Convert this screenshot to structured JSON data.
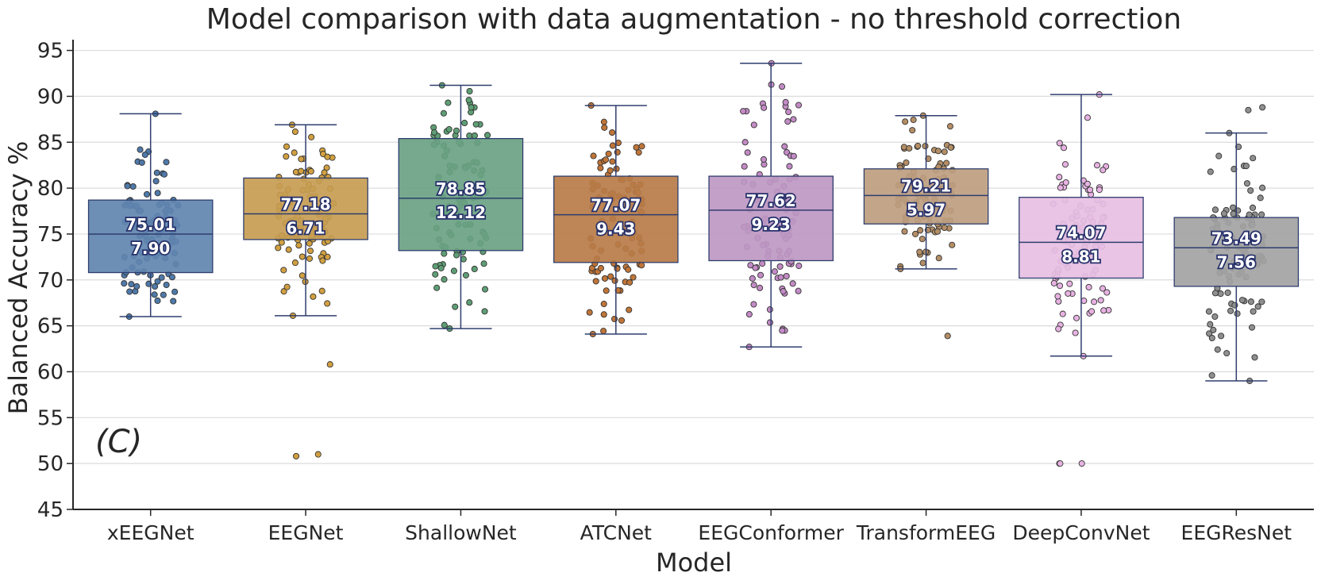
{
  "chart_data": {
    "type": "box",
    "title": "Model comparison with data augmentation - no threshold correction",
    "xlabel": "Model",
    "ylabel": "Balanced Accuracy %",
    "panel_label": "(C)",
    "ylim": [
      45,
      96
    ],
    "yticks": [
      45,
      50,
      55,
      60,
      65,
      70,
      75,
      80,
      85,
      90,
      95
    ],
    "grid": "horizontal",
    "categories": [
      "xEEGNet",
      "EEGNet",
      "ShallowNet",
      "ATCNet",
      "EEGConformer",
      "TransformEEG",
      "DeepConvNet",
      "EEGResNet"
    ],
    "colors": [
      "#6185b0",
      "#c79d52",
      "#6aa283",
      "#b97c48",
      "#be98c3",
      "#be9e80",
      "#e7bfe3",
      "#a3a3a3"
    ],
    "point_colors": [
      "#4f79a9",
      "#d2a040",
      "#5e9e75",
      "#c07538",
      "#c38bc6",
      "#b48e66",
      "#e7b2e2",
      "#8f8f8f"
    ],
    "boxes": [
      {
        "q1": 70.8,
        "median": 75.0,
        "q3": 78.7,
        "whislo": 66.0,
        "whishi": 88.1,
        "mean_label": "75.01",
        "std_label": "7.90",
        "outliers": []
      },
      {
        "q1": 74.4,
        "median": 77.2,
        "q3": 81.1,
        "whislo": 66.1,
        "whishi": 86.9,
        "mean_label": "77.18",
        "std_label": "6.71",
        "outliers": [
          60.8,
          51.0,
          50.8
        ]
      },
      {
        "q1": 73.2,
        "median": 78.9,
        "q3": 85.4,
        "whislo": 64.7,
        "whishi": 91.2,
        "mean_label": "78.85",
        "std_label": "12.12",
        "outliers": []
      },
      {
        "q1": 71.9,
        "median": 77.1,
        "q3": 81.3,
        "whislo": 64.1,
        "whishi": 89.0,
        "mean_label": "77.07",
        "std_label": "9.43",
        "outliers": []
      },
      {
        "q1": 72.1,
        "median": 77.6,
        "q3": 81.3,
        "whislo": 62.7,
        "whishi": 93.6,
        "mean_label": "77.62",
        "std_label": "9.23",
        "outliers": []
      },
      {
        "q1": 76.1,
        "median": 79.2,
        "q3": 82.1,
        "whislo": 71.2,
        "whishi": 87.9,
        "mean_label": "79.21",
        "std_label": "5.97",
        "outliers": [
          63.9
        ]
      },
      {
        "q1": 70.2,
        "median": 74.1,
        "q3": 79.0,
        "whislo": 61.7,
        "whishi": 90.2,
        "mean_label": "74.07",
        "std_label": "8.81",
        "outliers": [
          50.0,
          50.0,
          50.0
        ]
      },
      {
        "q1": 69.3,
        "median": 73.5,
        "q3": 76.8,
        "whislo": 59.0,
        "whishi": 86.0,
        "mean_label": "73.49",
        "std_label": "7.56",
        "outliers": [
          88.8,
          88.5
        ]
      }
    ]
  }
}
